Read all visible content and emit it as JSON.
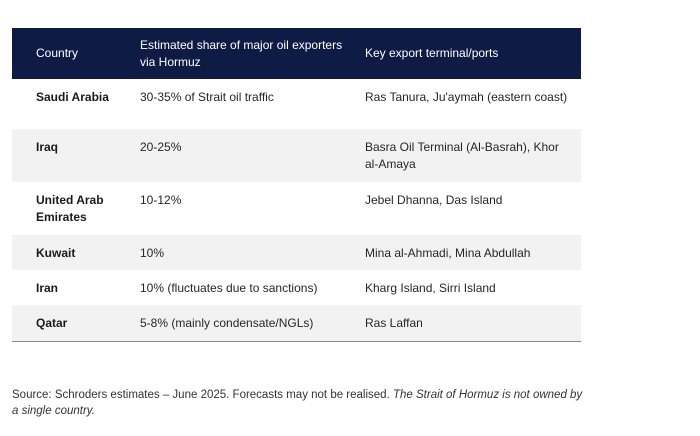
{
  "table": {
    "headers": [
      "Country",
      "Estimated share of major oil exporters via Hormuz",
      "Key export terminal/ports"
    ],
    "rows": [
      {
        "country": "Saudi Arabia",
        "share": "30-35% of Strait oil traffic",
        "ports": "Ras Tanura, Ju'aymah (eastern coast)"
      },
      {
        "country": "Iraq",
        "share": "20-25%",
        "ports": "Basra Oil Terminal (Al-Basrah), Khor al-Amaya"
      },
      {
        "country": "United Arab Emirates",
        "share": "10-12%",
        "ports": "Jebel Dhanna, Das Island"
      },
      {
        "country": "Kuwait",
        "share": "10%",
        "ports": "Mina al-Ahmadi, Mina Abdullah"
      },
      {
        "country": "Iran",
        "share": "10% (fluctuates due to sanctions)",
        "ports": "Kharg Island, Sirri Island"
      },
      {
        "country": "Qatar",
        "share": "5-8% (mainly condensate/NGLs)",
        "ports": "Ras Laffan"
      }
    ]
  },
  "source": {
    "text": "Source: Schroders estimates – June 2025. Forecasts may not be realised.",
    "italic_note": "The Strait of Hormuz is not owned by a single country."
  },
  "colors": {
    "header_background": "#0e1b45",
    "header_text": "#ffffff",
    "stripe": "#f2f2f2"
  }
}
